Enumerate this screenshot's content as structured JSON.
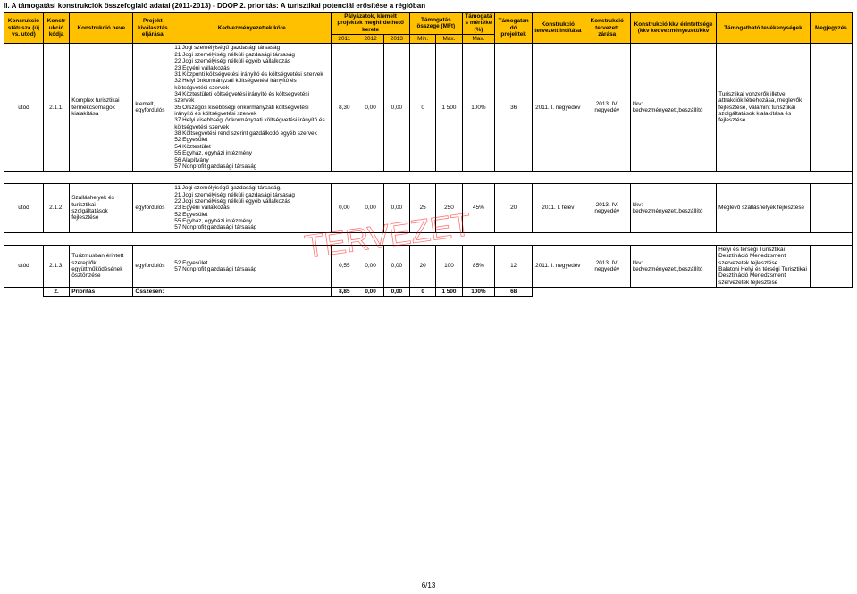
{
  "title": "II. A támogatási konstrukciók összefoglaló adatai (2011-2013) - DDOP 2. prioritás: A turisztikai potenciál erősítése a régióban",
  "header": {
    "c1": "Konsrukció státusza (új vs. utód)",
    "c2": "Konstr ukció kódja",
    "c3": "Konstrukció neve",
    "c4": "Projekt kiválasztás eljárása",
    "c5": "Kedvezményezettek köre",
    "c6": "Pályázatok, kiemelt projektek meghirdethető kerete",
    "c6a": "2011",
    "c6b": "2012",
    "c6c": "2013",
    "c7": "Támogatás összege (MFt)",
    "c7a": "Min.",
    "c7b": "Max.",
    "c8": "Támogatás mértéke (%)",
    "c8a": "Max.",
    "c9": "Támogatan dó projektek",
    "c10": "Konstrukció tervezett indítása",
    "c11": "Konstrukció tervezett zárása",
    "c12": "Konstrukció kkv érintettsége (kkv kedvezményezett/kkv",
    "c13": "Támogatható tevékenységek",
    "c14": "Megjegyzés"
  },
  "rows": [
    {
      "status": "utód",
      "kod": "2.1.1.",
      "nev": "Komplex turisztikai termékcsomagok kialakítása",
      "eljaras": "kiemelt, egyfordulós",
      "kor": "11 Jogi személyiségű gazdasági társaság\n21 Jogi személyiség nélküli gazdasági társaság\n22 Jogi személyiség nélküli egyéb vállalkozás\n23 Egyéni vállalkozás\n31 Központi költségvetési irányító és költségvetési szervek\n32 Helyi önkormányzati költségvetési irányító és költségvetési szervek\n34 Köztestületi költségvetési irányító és költségvetési szervek\n35 Országos kisebbségi önkormányzati költségvetési irányító és költségvetési szervek\n37 Helyi kisebbségi önkormányzati költségvetési irányító és költségvetési szervek\n38 Költségvetési rend szerint gazdálkodó egyéb szervek\n52 Egyesület\n54 Köztestület\n55 Egyház, egyházi intézmény\n56 Alapítvány\n57 Nonprofit gazdasági társaság",
      "p2011": "8,30",
      "p2012": "0,00",
      "p2013": "0,00",
      "min": "0",
      "max": "1 500",
      "mertek": "100%",
      "db": "36",
      "inditas": "2011. I. negyedév",
      "zaras": "2013. IV. negyedév",
      "kkv": "kkv: kedvezményezett,beszállító",
      "tev": "Turisztikai vonzerők illetve attrakciók létrehozása, meglevők fejlesztése, valamint turisztikai szolgáltatások kialakítása és fejlesztése",
      "meg": ""
    },
    {
      "status": "utód",
      "kod": "2.1.2.",
      "nev": "Szálláshelyek és turisztikai szolgáltatások fejlesztése",
      "eljaras": "egyfordulós",
      "kor": "11 Jogi személyiségű gazdasági társaság,\n21 Jogi személyiség nélküli gazdasági társaság\n22 Jogi személyiség nélküli egyéb vállalkozás\n23 Egyéni vállalkozás\n52 Egyesület\n55 Egyház, egyházi intézmény\n57 Nonprofit gazdasági társaság",
      "p2011": "0,00",
      "p2012": "0,00",
      "p2013": "0,00",
      "min": "25",
      "max": "250",
      "mertek": "45%",
      "db": "20",
      "inditas": "2011. I. félév",
      "zaras": "2013. IV. negyedév",
      "kkv": "kkv: kedvezményezett,beszállító",
      "tev": "Meglevő szálláshelyek fejlesztése",
      "meg": ""
    },
    {
      "status": "utód",
      "kod": "2.1.3.",
      "nev": "Turizmusban érintett szereplők együttműködésének ösztönzése",
      "eljaras": "egyfordulós",
      "kor": "52 Egyesület\n57 Nonprofit gazdasági társaság",
      "p2011": "0,55",
      "p2012": "0,00",
      "p2013": "0,00",
      "min": "20",
      "max": "100",
      "mertek": "85%",
      "db": "12",
      "inditas": "2011. I. negyedév",
      "zaras": "2013. IV. negyedév",
      "kkv": "kkv: kedvezményezett,beszállító",
      "tev": "Helyi és térségi Turisztikai Desztináció Menedzsment szervezetek fejlesztése\nBalatoni Helyi és térségi Turisztikai Desztináció Menedzsment szervezetek fejlesztése",
      "meg": ""
    }
  ],
  "totals": {
    "label_kod": "2.",
    "label": "Prioritás",
    "ossz": "Összesen:",
    "p2011": "8,85",
    "p2012": "0,00",
    "p2013": "0,00",
    "min": "0",
    "max": "1 500",
    "mertek": "100%",
    "db": "68"
  },
  "footer": "6/13",
  "colors": {
    "header_bg": "#ffc000"
  }
}
